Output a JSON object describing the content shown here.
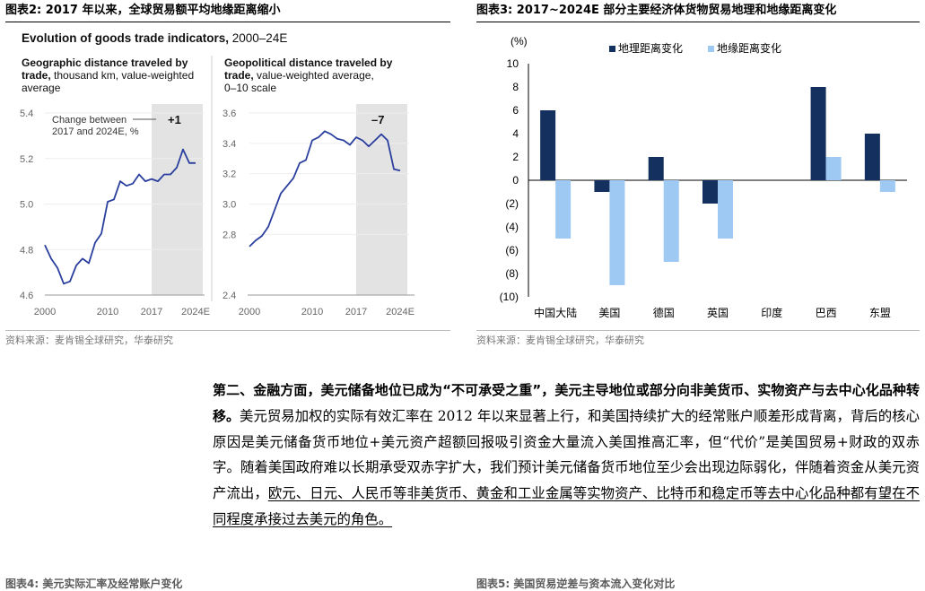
{
  "fig2": {
    "title": "图表2:  2017 年以来，全球贸易额平均地缘距离缩小",
    "main_title_bold": "Evolution of goods trade indicators,",
    "main_title_rest": " 2000–24E",
    "left": {
      "subtitle_bold_1": "Geographic distance traveled by",
      "subtitle_bold_2": "trade,",
      "subtitle_rest_2": " thousand km, value-weighted",
      "subtitle_3": "average",
      "annotation_1": "Change between",
      "annotation_2": "2017 and 2024E, %",
      "change_label": "+1",
      "y_ticks": [
        "5.4",
        "5.2",
        "5.0",
        "4.8",
        "4.6"
      ],
      "x_ticks": [
        "2000",
        "2010",
        "2017",
        "2024E"
      ]
    },
    "right": {
      "subtitle_bold_1": "Geopolitical distance traveled by",
      "subtitle_bold_2": "trade,",
      "subtitle_rest_2": " value-weighted average,",
      "subtitle_3": "0–10 scale",
      "change_label": "–7",
      "y_ticks": [
        "3.6",
        "3.4",
        "3.2",
        "3.0",
        "2.8",
        "2.4"
      ],
      "x_ticks": [
        "2000",
        "2010",
        "2017",
        "2024E"
      ]
    },
    "source": "资料来源：麦肯锡全球研究，华泰研究"
  },
  "fig3": {
    "title": "图表3:  2017~2024E 部分主要经济体货物贸易地理和地缘距离变化",
    "source": "资料来源：麦肯锡全球研究，华泰研究"
  },
  "chart_data": [
    {
      "type": "line",
      "ylim": [
        4.6,
        5.4
      ],
      "x": [
        2000,
        2001,
        2002,
        2003,
        2004,
        2005,
        2006,
        2007,
        2008,
        2009,
        2010,
        2011,
        2012,
        2013,
        2014,
        2015,
        2016,
        2017,
        2018,
        2019,
        2020,
        2021,
        2022,
        2023,
        2024
      ],
      "values": [
        4.82,
        4.76,
        4.72,
        4.65,
        4.66,
        4.73,
        4.76,
        4.74,
        4.83,
        4.87,
        5.01,
        5.02,
        5.1,
        5.08,
        5.09,
        5.13,
        5.1,
        5.11,
        5.1,
        5.13,
        5.13,
        5.16,
        5.24,
        5.18,
        5.18
      ],
      "highlight_range": [
        2017,
        2024
      ],
      "color": "#2a3f9d"
    },
    {
      "type": "line",
      "ylim": [
        2.4,
        3.6
      ],
      "x": [
        2000,
        2001,
        2002,
        2003,
        2004,
        2005,
        2006,
        2007,
        2008,
        2009,
        2010,
        2011,
        2012,
        2013,
        2014,
        2015,
        2016,
        2017,
        2018,
        2019,
        2020,
        2021,
        2022,
        2023,
        2024
      ],
      "values": [
        2.72,
        2.76,
        2.79,
        2.85,
        2.96,
        3.07,
        3.12,
        3.17,
        3.27,
        3.29,
        3.42,
        3.44,
        3.48,
        3.46,
        3.43,
        3.42,
        3.39,
        3.44,
        3.42,
        3.38,
        3.42,
        3.46,
        3.42,
        3.23,
        3.22
      ],
      "highlight_range": [
        2017,
        2024
      ],
      "color": "#2a3f9d"
    },
    {
      "type": "bar",
      "ylabel": "(%)",
      "categories": [
        "中国大陆",
        "美国",
        "德国",
        "英国",
        "印度",
        "巴西",
        "东盟"
      ],
      "series": [
        {
          "name": "地理距离变化",
          "values": [
            6,
            -1,
            2,
            -2,
            0,
            8,
            4
          ],
          "color": "#14305e"
        },
        {
          "name": "地缘距离变化",
          "values": [
            -5,
            -9,
            -7,
            -5,
            0,
            2,
            -1
          ],
          "color": "#9ec9f3"
        }
      ],
      "ylim": [
        -10,
        10
      ],
      "y_ticks": [
        "10",
        "8",
        "6",
        "4",
        "2",
        "0",
        "(2)",
        "(4)",
        "(6)",
        "(8)",
        "(10)"
      ],
      "legend_position": "top"
    }
  ],
  "paragraph": {
    "bold": "第二、金融方面，美元储备地位已成为“不可承受之重”，美元主导地位或部分向非美货币、实物资产与去中心化品种转移。",
    "normal": "美元贸易加权的实际有效汇率在 2012 年以来显著上行，和美国持续扩大的经常账户顺差形成背离，背后的核心原因是美元储备货币地位+美元资产超额回报吸引资金大量流入美国推高汇率，但“代价”是美国贸易+财政的双赤字。随着美国政府难以长期承受双赤字扩大，我们预计美元储备货币地位至少会出现边际弱化，伴随着资金从美元资产流出，",
    "underlined": "欧元、日元、人民币等非美货币、黄金和工业金属等实物资产、比特币和稳定币等去中心化品种都有望在不同程度承接过去美元的角色。"
  },
  "next_figs": {
    "left_title": "图表4:  美元实际汇率及经常账户变化",
    "right_title": "图表5:  美国贸易逆差与资本流入变化对比"
  }
}
